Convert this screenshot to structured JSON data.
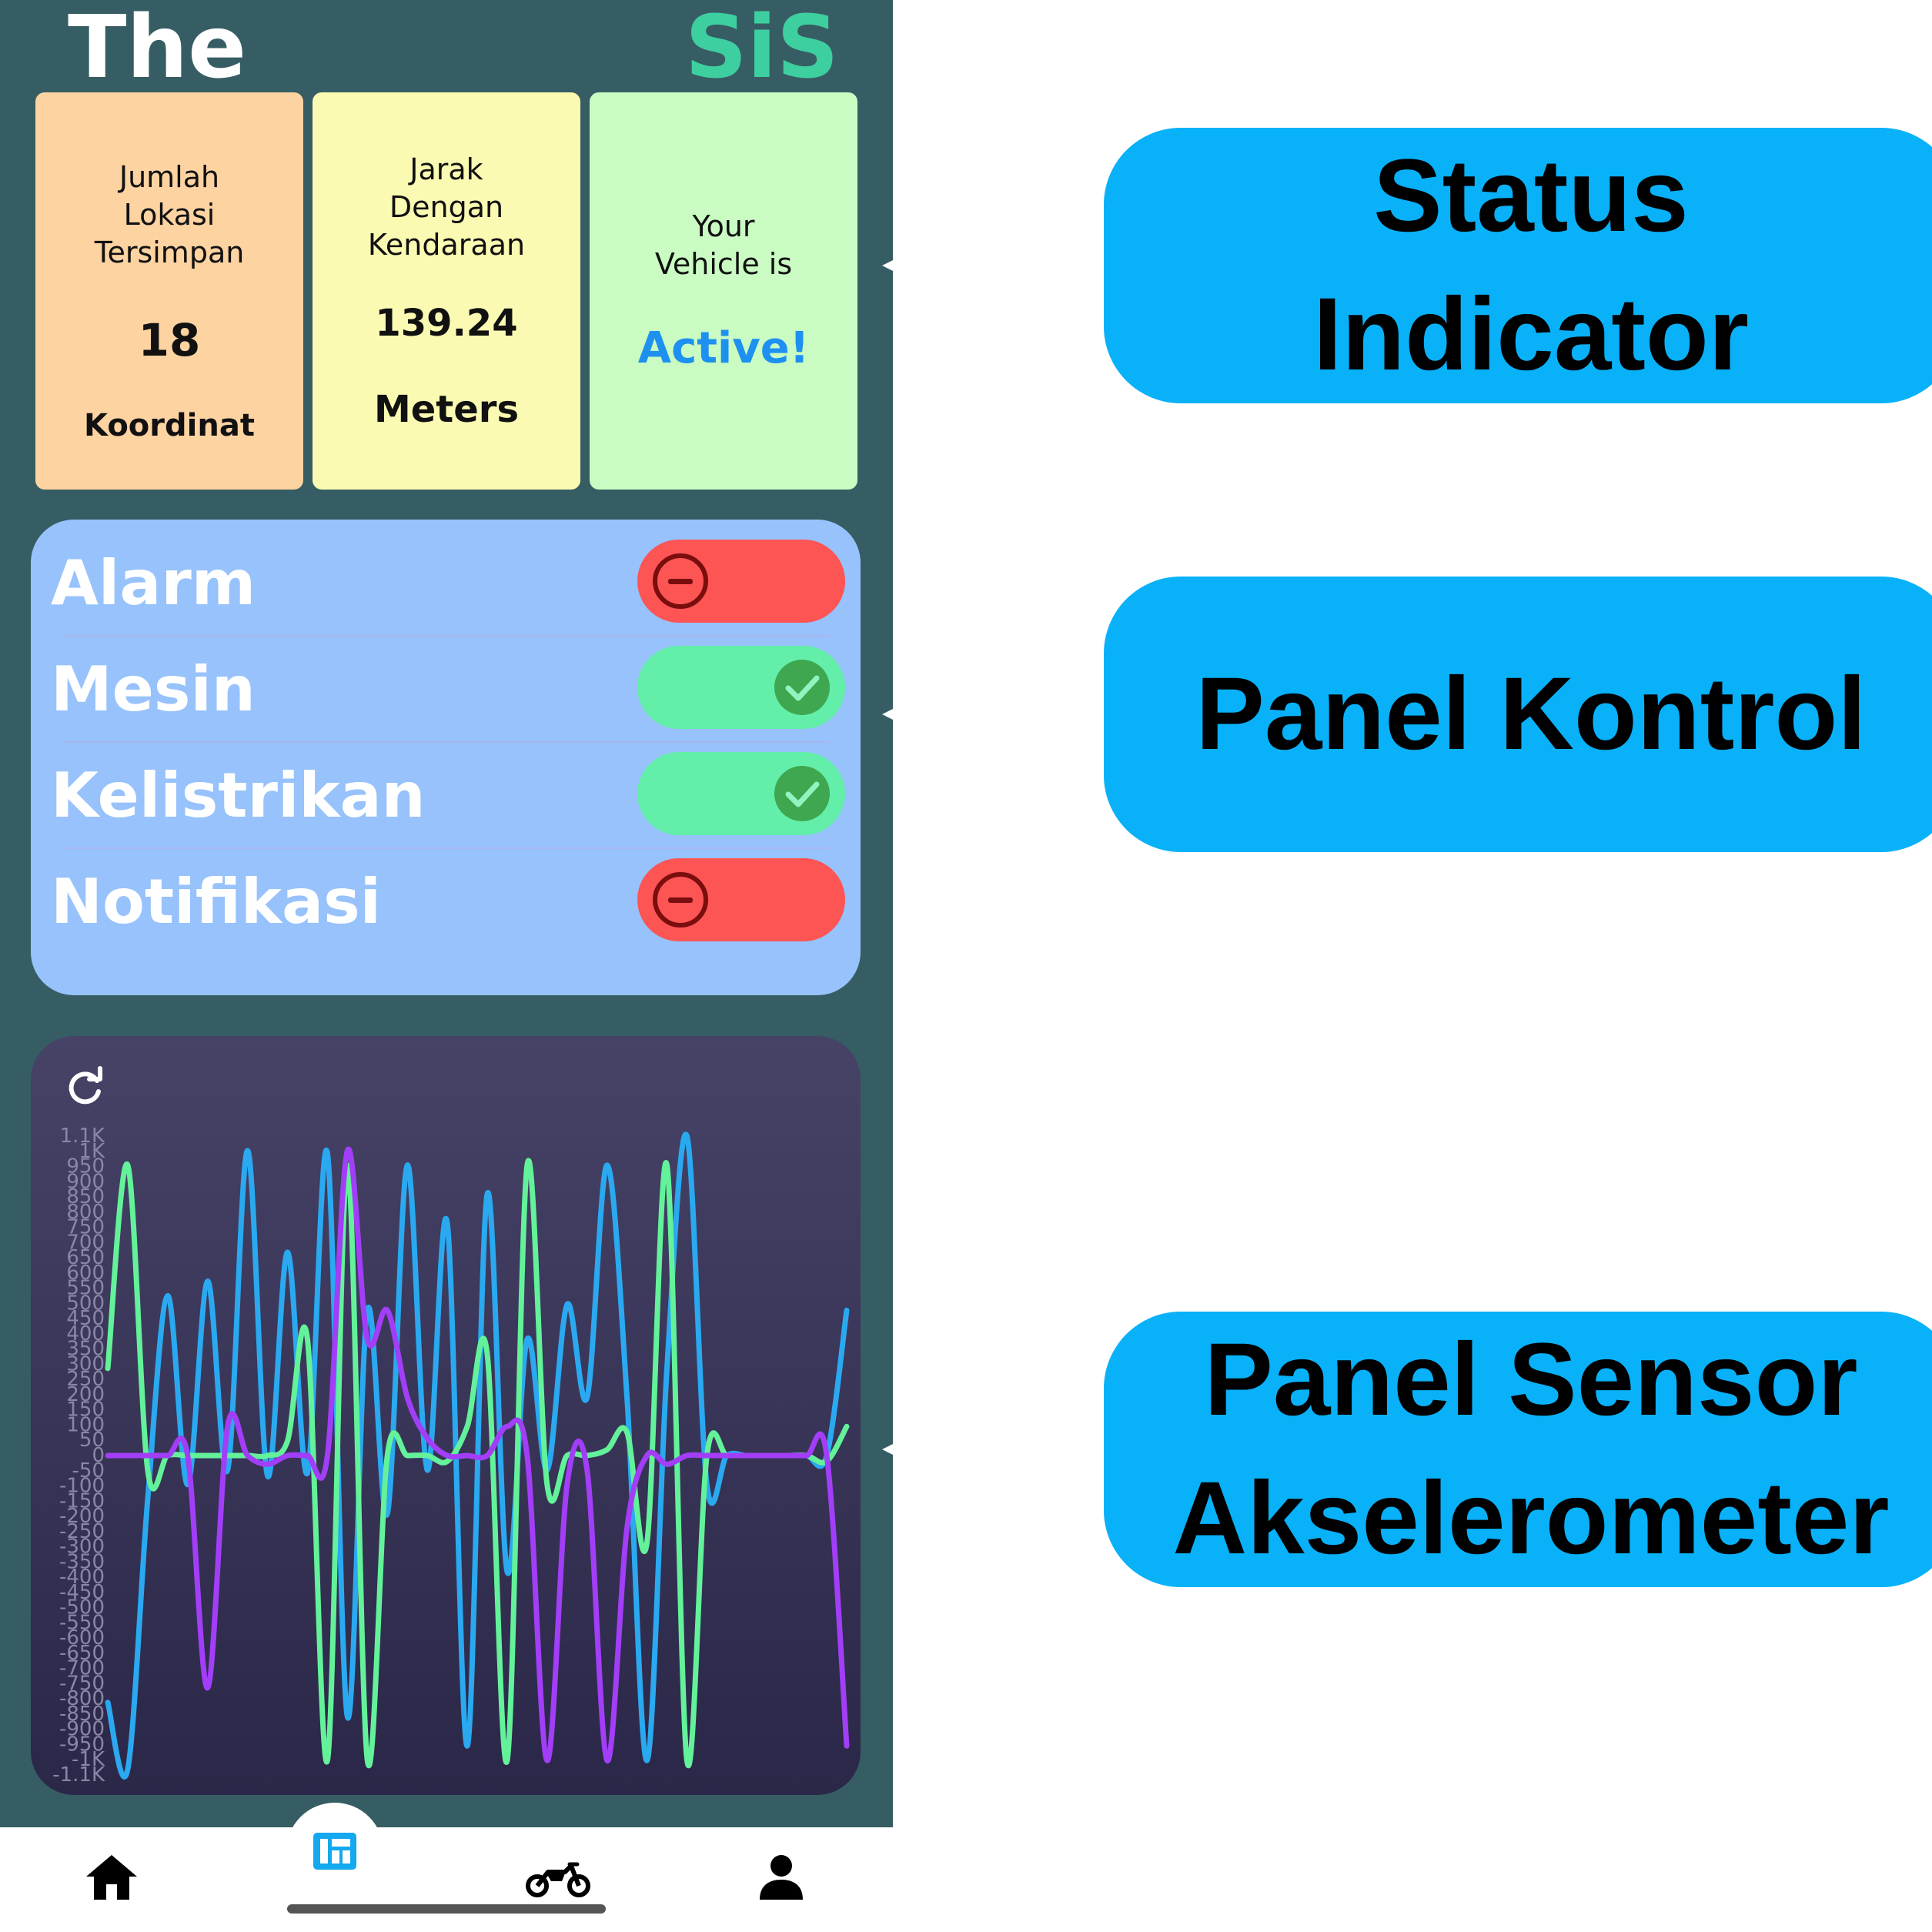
{
  "header": {
    "title_left": "The",
    "title_right": "SiS"
  },
  "cards": {
    "locations": {
      "caption": "Jumlah\nLokasi\nTersimpan",
      "value": "18",
      "unit": "Koordinat"
    },
    "distance": {
      "caption": "Jarak\nDengan\nKendaraan",
      "value": "139.24",
      "unit": "Meters"
    },
    "status": {
      "caption": "Your\nVehicle is",
      "value": "Active!",
      "value_color": "#1e90f0"
    }
  },
  "controls": [
    {
      "label": "Alarm",
      "state": "off"
    },
    {
      "label": "Mesin",
      "state": "on"
    },
    {
      "label": "Kelistrikan",
      "state": "on"
    },
    {
      "label": "Notifikasi",
      "state": "off"
    }
  ],
  "sensor_panel": {
    "refresh_icon": "refresh-icon"
  },
  "chart_data": {
    "type": "line",
    "y_ticks": [
      "1.1K",
      "1K",
      "950",
      "900",
      "850",
      "800",
      "750",
      "700",
      "650",
      "600",
      "550",
      "500",
      "450",
      "400",
      "350",
      "300",
      "250",
      "200",
      "150",
      "100",
      "50",
      "0",
      "-50",
      "-100",
      "-150",
      "-200",
      "-250",
      "-300",
      "-350",
      "-400",
      "-450",
      "-500",
      "-550",
      "-600",
      "-650",
      "-700",
      "-750",
      "-800",
      "-850",
      "-900",
      "-950",
      "-1K",
      "-1.1K"
    ],
    "ylim": [
      -1100,
      1100
    ],
    "grid": false,
    "colors": [
      "#2aa9f0",
      "#63f29a",
      "#a23ef7"
    ],
    "series": [
      {
        "values": [
          -850,
          -1080,
          -150,
          550,
          -100,
          600,
          -50,
          1050,
          -70,
          700,
          -60,
          1040,
          -900,
          500,
          -200,
          1000,
          -50,
          800,
          -1000,
          900,
          -400,
          400,
          -50,
          520,
          200,
          1000,
          200,
          -1050,
          300,
          1100,
          -100,
          0,
          0,
          0,
          0,
          0,
          0,
          500
        ]
      },
      {
        "values": [
          300,
          1000,
          -50,
          0,
          0,
          0,
          0,
          0,
          0,
          50,
          400,
          -1050,
          1000,
          -1050,
          0,
          0,
          0,
          -20,
          100,
          350,
          -1050,
          1000,
          -100,
          0,
          0,
          20,
          80,
          -300,
          1000,
          -1050,
          0,
          0,
          0,
          0,
          0,
          0,
          -20,
          100
        ]
      },
      {
        "values": [
          0,
          0,
          0,
          0,
          0,
          -800,
          100,
          0,
          -30,
          0,
          0,
          0,
          1050,
          400,
          500,
          200,
          60,
          0,
          0,
          0,
          100,
          0,
          -1050,
          -100,
          -50,
          -1050,
          -250,
          0,
          -30,
          0,
          0,
          0,
          0,
          0,
          0,
          0,
          0,
          -1000
        ]
      }
    ]
  },
  "nav": {
    "items": [
      {
        "icon": "home-icon"
      },
      {
        "icon": "dashboard-icon",
        "active": true
      },
      {
        "icon": "motorcycle-icon"
      },
      {
        "icon": "person-icon"
      }
    ]
  },
  "annotations": {
    "status": "Status\nIndicator",
    "control": "Panel Kontrol",
    "sensor": "Panel Sensor\nAkselerometer"
  }
}
